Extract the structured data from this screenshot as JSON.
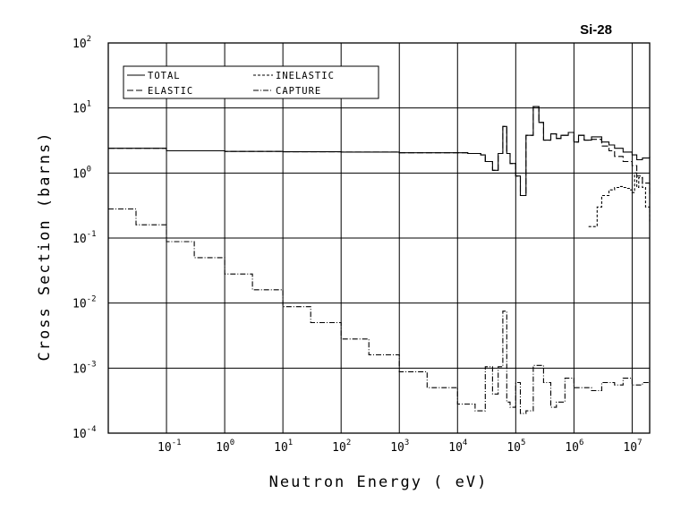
{
  "chart_data": {
    "type": "line",
    "title": "Si-28",
    "xlabel": "Neutron Energy ( eV)",
    "ylabel": "Cross Section (barns)",
    "xscale": "log",
    "yscale": "log",
    "xlim": [
      0.01,
      20000000
    ],
    "ylim": [
      0.0001,
      100
    ],
    "grid": true,
    "legend_position": "top-left",
    "x_tick_labels": [
      {
        "base": "10",
        "exp": "-1",
        "value": 0.1
      },
      {
        "base": "10",
        "exp": "0",
        "value": 1
      },
      {
        "base": "10",
        "exp": "1",
        "value": 10
      },
      {
        "base": "10",
        "exp": "2",
        "value": 100
      },
      {
        "base": "10",
        "exp": "3",
        "value": 1000
      },
      {
        "base": "10",
        "exp": "4",
        "value": 10000
      },
      {
        "base": "10",
        "exp": "5",
        "value": 100000
      },
      {
        "base": "10",
        "exp": "6",
        "value": 1000000
      },
      {
        "base": "10",
        "exp": "7",
        "value": 10000000
      }
    ],
    "y_tick_labels": [
      {
        "base": "10",
        "exp": "2",
        "value": 100
      },
      {
        "base": "10",
        "exp": "1",
        "value": 10
      },
      {
        "base": "10",
        "exp": "0",
        "value": 1
      },
      {
        "base": "10",
        "exp": "-1",
        "value": 0.1
      },
      {
        "base": "10",
        "exp": "-2",
        "value": 0.01
      },
      {
        "base": "10",
        "exp": "-3",
        "value": 0.001
      },
      {
        "base": "10",
        "exp": "-4",
        "value": 0.0001
      }
    ],
    "series": [
      {
        "name": "TOTAL",
        "dash": "solid",
        "x": [
          0.01,
          0.1,
          1,
          10,
          100,
          1000,
          5000,
          15000,
          25000,
          30000,
          40000,
          50000,
          60000,
          70000,
          80000,
          100000,
          120000,
          150000,
          200000,
          250000,
          300000,
          400000,
          500000,
          600000,
          800000,
          1000000,
          1200000,
          1500000,
          2000000,
          3000000,
          4000000,
          5000000,
          7000000,
          10000000,
          12000000,
          15000000,
          20000000
        ],
        "y": [
          2.4,
          2.2,
          2.15,
          2.12,
          2.1,
          2.05,
          2.05,
          2.0,
          1.9,
          1.5,
          1.1,
          2.0,
          5.2,
          2.0,
          1.4,
          0.9,
          0.45,
          3.8,
          10.5,
          6.0,
          3.2,
          4.0,
          3.4,
          3.8,
          4.2,
          3.0,
          3.8,
          3.2,
          3.6,
          3.0,
          2.7,
          2.4,
          2.1,
          1.9,
          1.6,
          1.7,
          1.8
        ]
      },
      {
        "name": "ELASTIC",
        "dash": "long-dash",
        "x": [
          0.01,
          0.1,
          1,
          10,
          100,
          1000,
          5000,
          15000,
          25000,
          30000,
          40000,
          50000,
          60000,
          70000,
          80000,
          100000,
          120000,
          150000,
          200000,
          250000,
          300000,
          400000,
          500000,
          600000,
          800000,
          1000000,
          1200000,
          1500000,
          2000000,
          3000000,
          4000000,
          5000000,
          7000000,
          10000000,
          12000000,
          15000000,
          20000000
        ],
        "y": [
          2.4,
          2.2,
          2.15,
          2.12,
          2.1,
          2.05,
          2.05,
          2.0,
          1.9,
          1.5,
          1.1,
          2.0,
          5.2,
          2.0,
          1.4,
          0.9,
          0.45,
          3.8,
          10.5,
          6.0,
          3.2,
          4.0,
          3.4,
          3.8,
          4.2,
          3.0,
          3.8,
          3.2,
          3.3,
          2.6,
          2.2,
          1.8,
          1.5,
          1.3,
          0.9,
          0.7,
          0.45
        ]
      },
      {
        "name": "INELASTIC",
        "dash": "short-dash",
        "x": [
          1780000,
          2000000,
          2500000,
          3000000,
          4000000,
          5000000,
          6000000,
          7000000,
          8000000,
          9000000,
          10000000,
          11000000,
          12000000,
          13000000,
          15000000,
          17000000,
          20000000
        ],
        "y": [
          0.15,
          0.15,
          0.3,
          0.45,
          0.55,
          0.6,
          0.62,
          0.6,
          0.58,
          0.55,
          0.5,
          1.0,
          0.6,
          0.85,
          0.6,
          0.3,
          0.18
        ]
      },
      {
        "name": "CAPTURE",
        "dash": "dash-dot",
        "x": [
          0.01,
          0.03,
          0.1,
          0.3,
          1,
          3,
          10,
          30,
          100,
          300,
          1000,
          3000,
          10000,
          20000,
          30000,
          40000,
          50000,
          60000,
          70000,
          80000,
          100000,
          120000,
          150000,
          200000,
          300000,
          400000,
          500000,
          700000,
          1000000,
          2000000,
          3000000,
          5000000,
          7000000,
          10000000,
          15000000,
          20000000
        ],
        "y": [
          0.28,
          0.16,
          0.088,
          0.05,
          0.028,
          0.016,
          0.0088,
          0.005,
          0.0028,
          0.0016,
          0.00088,
          0.0005,
          0.00028,
          0.00022,
          0.00105,
          0.0004,
          0.00105,
          0.0075,
          0.0003,
          0.00025,
          0.0006,
          0.0002,
          0.00022,
          0.0011,
          0.0006,
          0.00025,
          0.0003,
          0.0007,
          0.0005,
          0.00045,
          0.0006,
          0.00055,
          0.0007,
          0.00055,
          0.0006,
          0.00065
        ]
      }
    ]
  }
}
